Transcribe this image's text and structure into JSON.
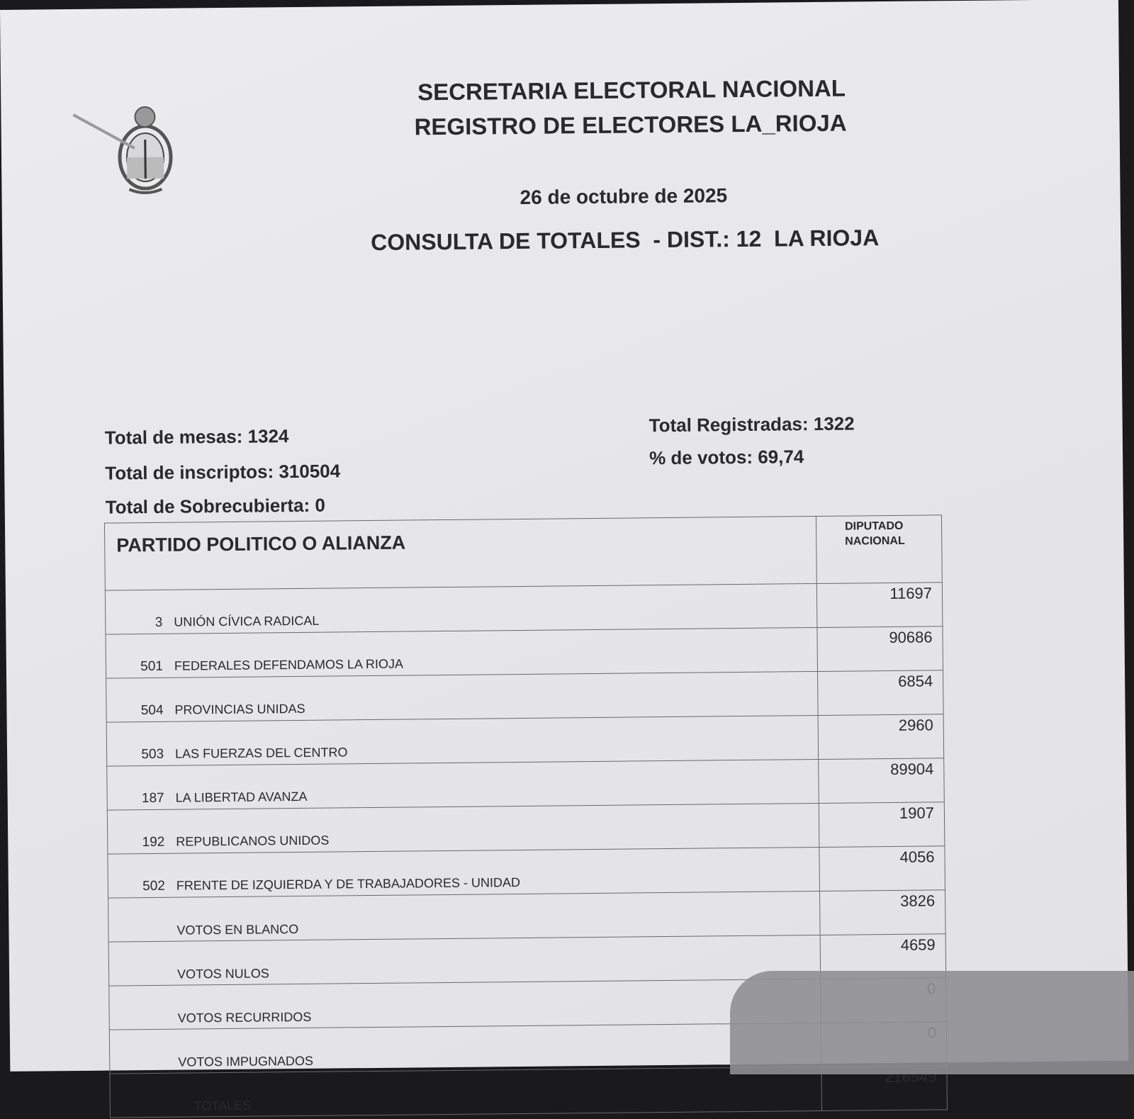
{
  "header": {
    "line1": "SECRETARIA ELECTORAL NACIONAL",
    "line2": "REGISTRO DE ELECTORES LA_RIOJA",
    "date": "26 de octubre de 2025",
    "consulta": "CONSULTA DE TOTALES  - DIST.: 12  LA RIOJA"
  },
  "stats": {
    "mesas": "Total de mesas: 1324",
    "inscriptos": "Total de inscriptos: 310504",
    "sobrecubierta": "Total de Sobrecubierta: 0",
    "registradas": "Total Registradas: 1322",
    "porcentaje": "% de votos: 69,74"
  },
  "table": {
    "col_party": "PARTIDO POLITICO O ALIANZA",
    "col_votes_1": "DIPUTADO",
    "col_votes_2": "NACIONAL",
    "rows": [
      {
        "num": "3",
        "name": "UNIÓN CÍVICA RADICAL",
        "votes": "11697"
      },
      {
        "num": "501",
        "name": "FEDERALES DEFENDAMOS LA RIOJA",
        "votes": "90686"
      },
      {
        "num": "504",
        "name": "PROVINCIAS UNIDAS",
        "votes": "6854"
      },
      {
        "num": "503",
        "name": "LAS FUERZAS DEL CENTRO",
        "votes": "2960"
      },
      {
        "num": "187",
        "name": "LA LIBERTAD AVANZA",
        "votes": "89904"
      },
      {
        "num": "192",
        "name": "REPUBLICANOS UNIDOS",
        "votes": "1907"
      },
      {
        "num": "502",
        "name": "FRENTE DE IZQUIERDA Y DE TRABAJADORES - UNIDAD",
        "votes": "4056"
      },
      {
        "num": "",
        "name": "VOTOS EN BLANCO",
        "votes": "3826"
      },
      {
        "num": "",
        "name": "VOTOS NULOS",
        "votes": "4659"
      },
      {
        "num": "",
        "name": "VOTOS RECURRIDOS",
        "votes": "0"
      },
      {
        "num": "",
        "name": "VOTOS IMPUGNADOS",
        "votes": "0"
      },
      {
        "num": "",
        "name": "TOTALES",
        "votes": "216549"
      }
    ]
  }
}
